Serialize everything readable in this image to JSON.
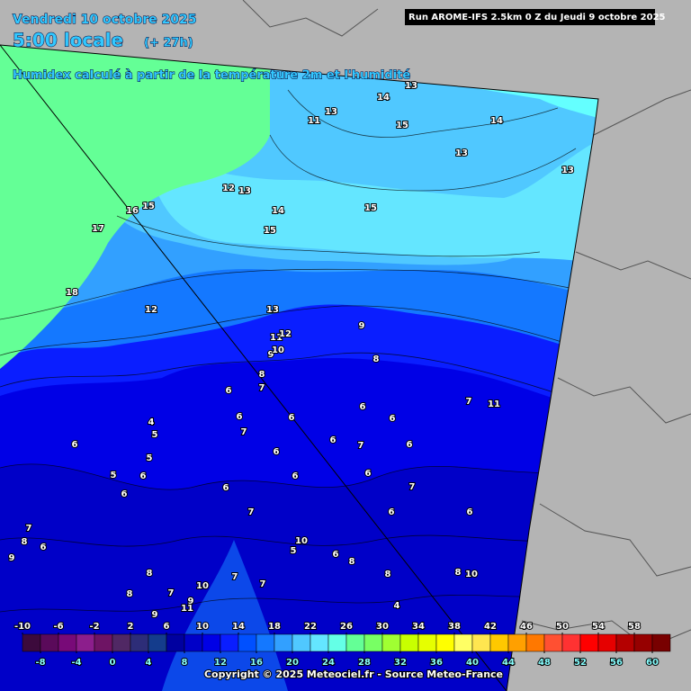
{
  "header": {
    "date": "Vendredi 10 octobre 2025",
    "time": "5:00 locale",
    "lead": "(+ 27h)",
    "subtitle": "Humidex calculé à partir de la température 2m et l'humidité",
    "run": "Run AROME-IFS 2.5km 0 Z du Jeudi 9 octobre 2025"
  },
  "contour_labels": [
    13,
    14,
    13,
    11,
    15,
    14,
    13,
    13,
    12,
    13,
    16,
    15,
    14,
    15,
    15,
    17,
    18,
    12,
    13,
    9,
    11,
    12,
    9,
    10,
    8,
    8,
    6,
    7,
    7,
    11,
    6,
    6,
    6,
    6,
    4,
    5,
    7,
    6,
    6,
    7,
    6,
    6,
    5,
    5,
    6,
    6,
    6,
    6,
    6,
    7,
    7,
    6,
    6,
    7,
    8,
    6,
    10,
    5,
    6,
    8,
    9,
    8,
    8,
    8,
    10,
    7,
    10,
    7,
    8,
    7,
    9,
    4,
    11,
    9
  ],
  "colorbar": {
    "range": [
      -10,
      62
    ],
    "colors": [
      "#3c0a3c",
      "#5a0a5a",
      "#780a78",
      "#8c1e8c",
      "#6e1464",
      "#502864",
      "#2d2d78",
      "#143c8c",
      "#0000a0",
      "#0000c8",
      "#0000e6",
      "#0a1eff",
      "#0050ff",
      "#1478ff",
      "#32a0ff",
      "#50c8ff",
      "#64e6ff",
      "#64ffe6",
      "#64ff96",
      "#78ff64",
      "#a0ff32",
      "#c8ff00",
      "#e6ff00",
      "#ffff00",
      "#ffff64",
      "#ffe650",
      "#ffc800",
      "#ffa000",
      "#ff7800",
      "#ff5032",
      "#ff3232",
      "#ff0000",
      "#e60000",
      "#b40000",
      "#960000",
      "#780000"
    ],
    "top_labels": [
      -10,
      -6,
      -2,
      2,
      6,
      10,
      14,
      18,
      22,
      26,
      30,
      34,
      38,
      42,
      46,
      50,
      54,
      58
    ],
    "bottom_labels": [
      -8,
      -4,
      0,
      4,
      8,
      12,
      16,
      20,
      24,
      28,
      32,
      36,
      40,
      44,
      48,
      52,
      56,
      60
    ]
  },
  "copyright": "Copyright © 2025 Meteociel.fr - Source Meteo-France"
}
